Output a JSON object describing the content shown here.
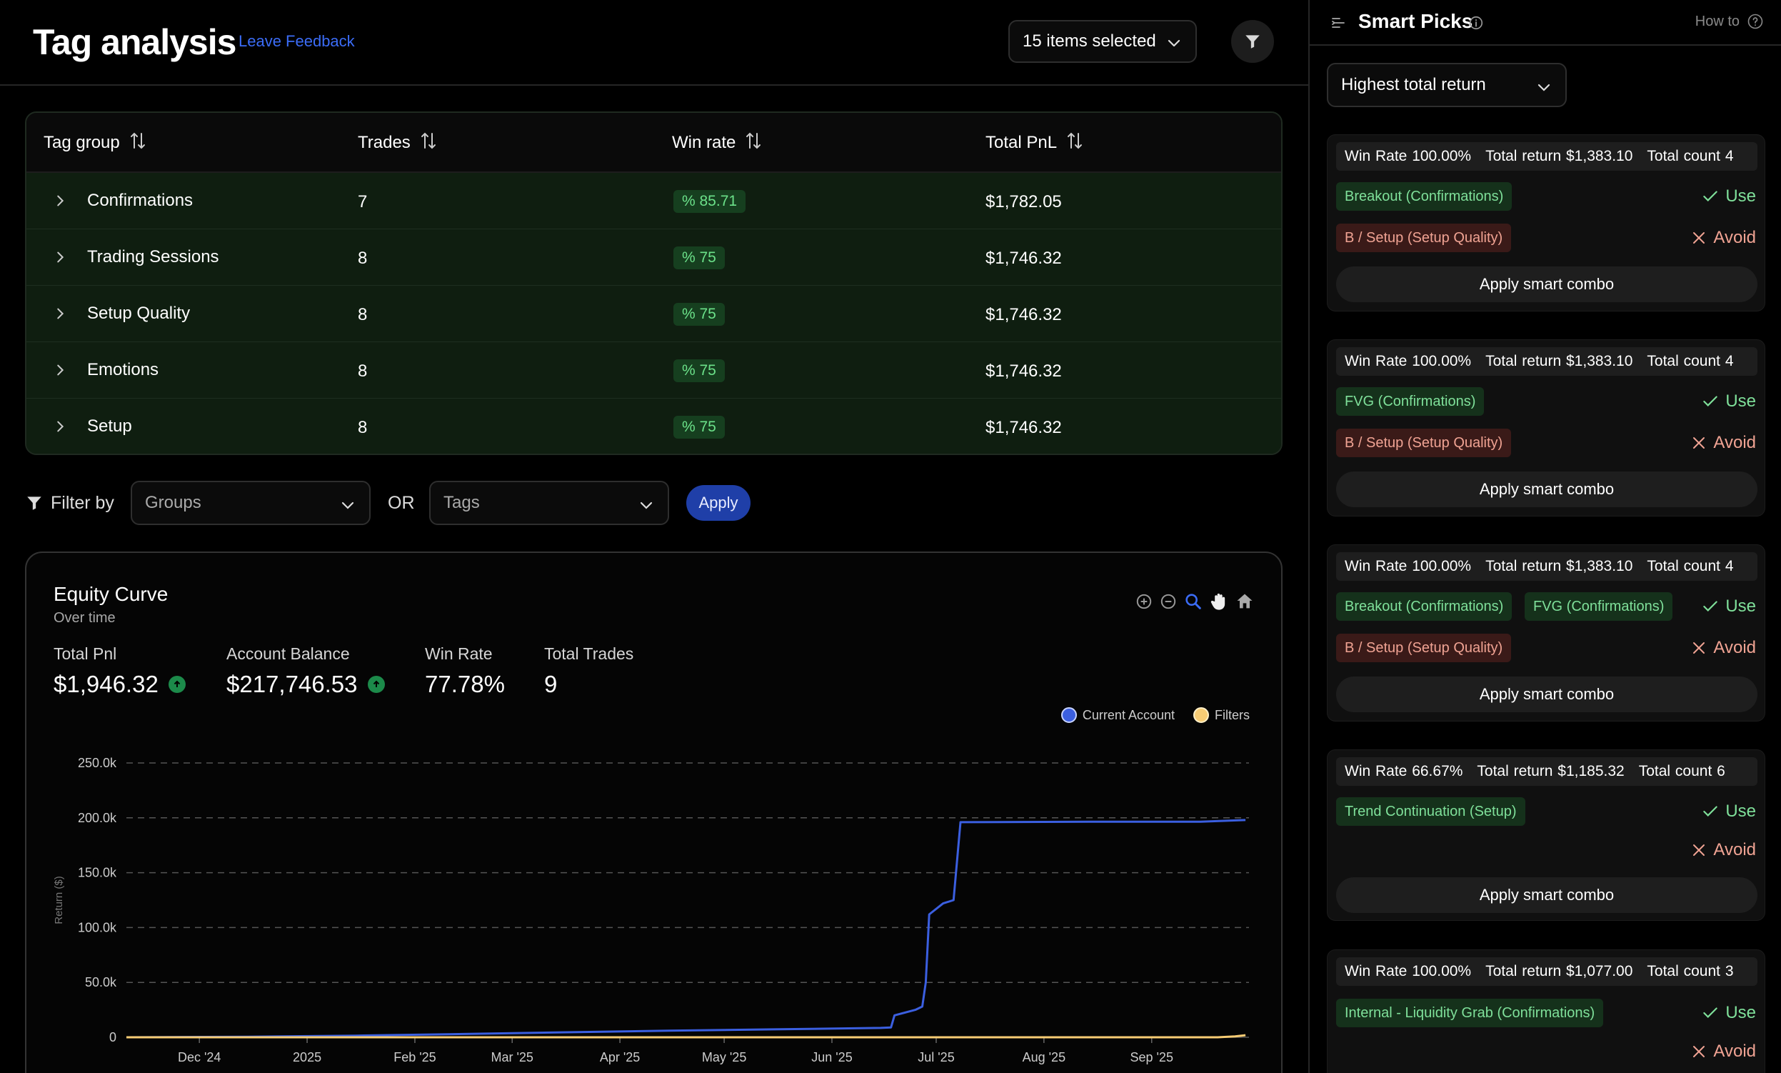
{
  "header": {
    "title": "Tag analysis",
    "feedback_label": "Leave Feedback",
    "items_selected": "15 items selected"
  },
  "table": {
    "columns": [
      "Tag group",
      "Trades",
      "Win rate",
      "Total PnL"
    ],
    "rows": [
      {
        "name": "Confirmations",
        "trades": "7",
        "win_rate": "% 85.71",
        "pnl": "$1,782.05"
      },
      {
        "name": "Trading Sessions",
        "trades": "8",
        "win_rate": "% 75",
        "pnl": "$1,746.32"
      },
      {
        "name": "Setup Quality",
        "trades": "8",
        "win_rate": "% 75",
        "pnl": "$1,746.32"
      },
      {
        "name": "Emotions",
        "trades": "8",
        "win_rate": "% 75",
        "pnl": "$1,746.32"
      },
      {
        "name": "Setup",
        "trades": "8",
        "win_rate": "% 75",
        "pnl": "$1,746.32"
      }
    ]
  },
  "filter": {
    "label": "Filter by",
    "groups_placeholder": "Groups",
    "or_label": "OR",
    "tags_placeholder": "Tags",
    "apply_label": "Apply"
  },
  "equity": {
    "title": "Equity Curve",
    "subtitle": "Over time",
    "stats": [
      {
        "label": "Total Pnl",
        "value": "$1,946.32",
        "trend": "up"
      },
      {
        "label": "Account Balance",
        "value": "$217,746.53",
        "trend": "up"
      },
      {
        "label": "Win Rate",
        "value": "77.78%"
      },
      {
        "label": "Total Trades",
        "value": "9"
      }
    ],
    "toolbar_icons": [
      "zoom-in-icon",
      "zoom-out-icon",
      "magnifier-icon",
      "pan-hand-icon",
      "home-icon"
    ]
  },
  "chart_data": {
    "type": "line",
    "title": "",
    "xlabel": "",
    "ylabel": "Return ($)",
    "x_ticks": [
      "Dec '24",
      "2025",
      "Feb '25",
      "Mar '25",
      "Apr '25",
      "May '25",
      "Jun '25",
      "Jul '25",
      "Aug '25",
      "Sep '25"
    ],
    "y_ticks": [
      "0",
      "50.0k",
      "100.0k",
      "150.0k",
      "200.0k",
      "250.0k"
    ],
    "ylim": [
      0,
      250000
    ],
    "grid": "horizontal dashed",
    "legend_position": "top-right",
    "series": [
      {
        "name": "Current Account",
        "color": "#3b5fe0",
        "points": [
          [
            "2024-11-10",
            0
          ],
          [
            "2024-12-15",
            500
          ],
          [
            "2025-01-15",
            1500
          ],
          [
            "2025-02-15",
            3000
          ],
          [
            "2025-03-15",
            4500
          ],
          [
            "2025-04-15",
            6000
          ],
          [
            "2025-05-15",
            7200
          ],
          [
            "2025-06-15",
            8500
          ],
          [
            "2025-06-18",
            9000
          ],
          [
            "2025-06-19",
            20000
          ],
          [
            "2025-06-25",
            25000
          ],
          [
            "2025-06-27",
            28000
          ],
          [
            "2025-06-28",
            50000
          ],
          [
            "2025-06-29",
            112000
          ],
          [
            "2025-07-03",
            122000
          ],
          [
            "2025-07-06",
            125000
          ],
          [
            "2025-07-08",
            196000
          ],
          [
            "2025-08-15",
            196500
          ],
          [
            "2025-09-15",
            196500
          ],
          [
            "2025-09-28",
            198000
          ]
        ]
      },
      {
        "name": "Filters",
        "color": "#f7cc74",
        "points": [
          [
            "2024-11-10",
            0
          ],
          [
            "2025-09-20",
            0
          ],
          [
            "2025-09-25",
            800
          ],
          [
            "2025-09-28",
            1900
          ]
        ]
      }
    ]
  },
  "sidebar": {
    "title": "Smart Picks",
    "howto_label": "How to",
    "sort_value": "Highest total return",
    "use_label": "Use",
    "avoid_label": "Avoid",
    "combo_label": "Apply smart combo",
    "picks": [
      {
        "win_rate": "Win Rate 100.00%",
        "total_return": "Total return $1,383.10",
        "total_count": "Total count 4",
        "use_tags": [
          "Breakout (Confirmations)"
        ],
        "avoid_tags": [
          "B / Setup (Setup Quality)"
        ]
      },
      {
        "win_rate": "Win Rate 100.00%",
        "total_return": "Total return $1,383.10",
        "total_count": "Total count 4",
        "use_tags": [
          "FVG (Confirmations)"
        ],
        "avoid_tags": [
          "B / Setup (Setup Quality)"
        ]
      },
      {
        "win_rate": "Win Rate 100.00%",
        "total_return": "Total return $1,383.10",
        "total_count": "Total count 4",
        "use_tags": [
          "Breakout (Confirmations)",
          "FVG (Confirmations)"
        ],
        "avoid_tags": [
          "B / Setup (Setup Quality)"
        ]
      },
      {
        "win_rate": "Win Rate 66.67%",
        "total_return": "Total return $1,185.32",
        "total_count": "Total count 6",
        "use_tags": [
          "Trend Continuation (Setup)"
        ],
        "avoid_tags": []
      },
      {
        "win_rate": "Win Rate 100.00%",
        "total_return": "Total return $1,077.00",
        "total_count": "Total count 3",
        "use_tags": [
          "Internal - Liquidity Grab (Confirmations)"
        ],
        "avoid_tags": []
      }
    ]
  }
}
